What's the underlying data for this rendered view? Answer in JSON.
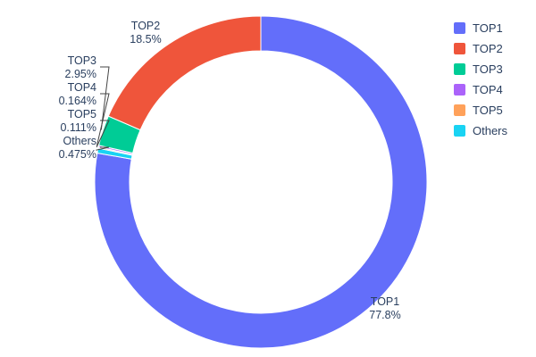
{
  "chart_data": {
    "type": "pie",
    "subtype": "donut",
    "title": "",
    "legend_position": "right",
    "hole": 0.79,
    "grid": false,
    "values_are": "percent",
    "rotation_note": "largest slice starts at 12 o'clock going clockwise; remaining slices stack counterclockwise from 12 o'clock",
    "slices": [
      {
        "label": "TOP1",
        "value": 77.8,
        "display": "77.8%",
        "color": "#636EFA"
      },
      {
        "label": "TOP2",
        "value": 18.5,
        "display": "18.5%",
        "color": "#EF553B"
      },
      {
        "label": "TOP3",
        "value": 2.95,
        "display": "2.95%",
        "color": "#00CC96"
      },
      {
        "label": "TOP4",
        "value": 0.164,
        "display": "0.164%",
        "color": "#AB63FA"
      },
      {
        "label": "TOP5",
        "value": 0.111,
        "display": "0.111%",
        "color": "#FFA15A"
      },
      {
        "label": "Others",
        "value": 0.475,
        "display": "0.475%",
        "color": "#19D3F3"
      }
    ],
    "text_color": "#2a3f5f",
    "background": "#ffffff"
  }
}
